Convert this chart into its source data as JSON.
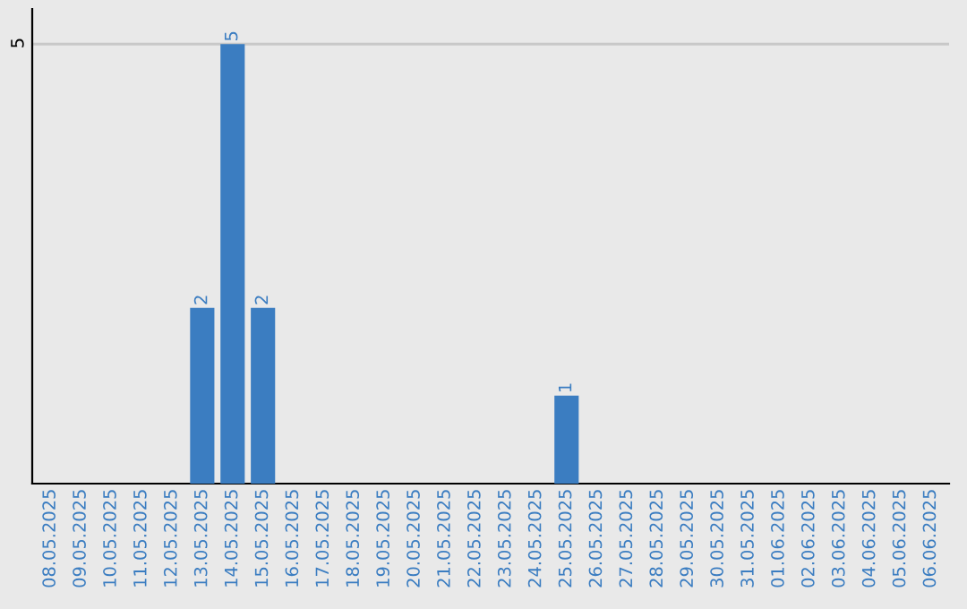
{
  "chart_data": {
    "type": "bar",
    "categories": [
      "08.05.2025",
      "09.05.2025",
      "10.05.2025",
      "11.05.2025",
      "12.05.2025",
      "13.05.2025",
      "14.05.2025",
      "15.05.2025",
      "16.05.2025",
      "17.05.2025",
      "18.05.2025",
      "19.05.2025",
      "20.05.2025",
      "21.05.2025",
      "22.05.2025",
      "23.05.2025",
      "24.05.2025",
      "25.05.2025",
      "26.05.2025",
      "27.05.2025",
      "28.05.2025",
      "29.05.2025",
      "30.05.2025",
      "31.05.2025",
      "01.06.2025",
      "02.06.2025",
      "03.06.2025",
      "04.06.2025",
      "05.06.2025",
      "06.06.2025"
    ],
    "values": [
      0,
      0,
      0,
      0,
      0,
      2,
      5,
      2,
      0,
      0,
      0,
      0,
      0,
      0,
      0,
      0,
      0,
      1,
      0,
      0,
      0,
      0,
      0,
      0,
      0,
      0,
      0,
      0,
      0,
      0
    ],
    "value_labels": [
      null,
      null,
      null,
      null,
      null,
      "2",
      "5",
      "2",
      null,
      null,
      null,
      null,
      null,
      null,
      null,
      null,
      null,
      "1",
      null,
      null,
      null,
      null,
      null,
      null,
      null,
      null,
      null,
      null,
      null,
      null
    ],
    "color": "#3b7dc1",
    "ylim": [
      0,
      5.4
    ],
    "yticks": [
      5
    ],
    "grid": "y"
  }
}
